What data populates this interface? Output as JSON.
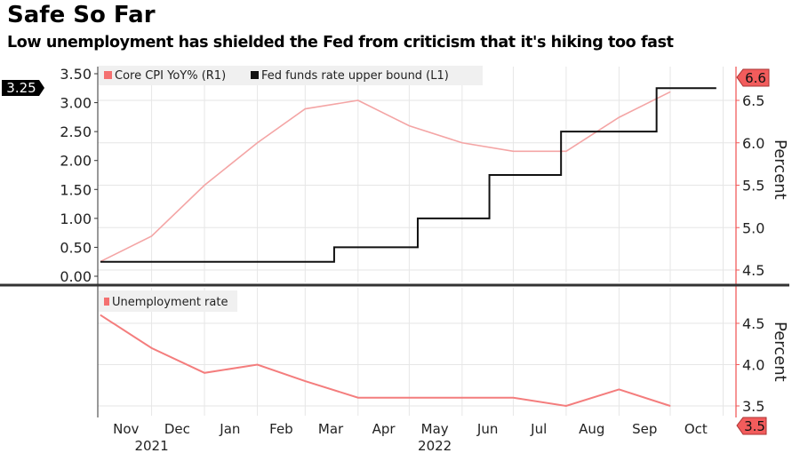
{
  "title": "Safe So Far",
  "subtitle": "Low unemployment has shielded the Fed from criticism that it's hiking too fast",
  "colors": {
    "cpi": "#f4a5a5",
    "fed": "#111111",
    "unemp": "#f47d7d",
    "axis_right": "#f25c5c",
    "grid": "#e6e6e6"
  },
  "chart_data": [
    {
      "type": "line",
      "panel": "top",
      "legend_placement": "top-left",
      "grid": true,
      "x_dates": [
        "2021-10-31",
        "2021-11-30",
        "2021-12-31",
        "2022-01-31",
        "2022-02-28",
        "2022-03-31",
        "2022-04-30",
        "2022-05-31",
        "2022-06-30",
        "2022-07-31",
        "2022-08-31",
        "2022-09-30"
      ],
      "series": [
        {
          "name": "Core CPI YoY% (R1)",
          "axis": "right",
          "values": [
            4.6,
            4.9,
            5.5,
            6.0,
            6.4,
            6.5,
            6.2,
            6.0,
            5.9,
            5.9,
            6.3,
            6.6
          ],
          "last_label": "6.6"
        },
        {
          "name": "Fed funds rate upper bound (L1)",
          "axis": "left",
          "step": true,
          "points": [
            [
              "2021-10-31",
              0.25
            ],
            [
              "2022-03-17",
              0.5
            ],
            [
              "2022-05-05",
              1.0
            ],
            [
              "2022-06-16",
              1.75
            ],
            [
              "2022-07-28",
              2.5
            ],
            [
              "2022-09-22",
              3.25
            ],
            [
              "2022-10-27",
              3.25
            ]
          ],
          "last_label": "3.25"
        }
      ],
      "left_ylim": [
        0,
        3.5
      ],
      "left_ticks": [
        "0.00",
        "0.50",
        "1.00",
        "1.50",
        "2.00",
        "2.50",
        "3.00",
        "3.50"
      ],
      "right_ylim": [
        4.35,
        6.85
      ],
      "right_ticks": [
        "4.5",
        "5.0",
        "5.5",
        "6.0",
        "6.5"
      ],
      "ylabel_right": "Percent"
    },
    {
      "type": "line",
      "panel": "bottom",
      "legend_placement": "top-left",
      "grid": true,
      "x_dates": [
        "2021-10-31",
        "2021-11-30",
        "2021-12-31",
        "2022-01-31",
        "2022-02-28",
        "2022-03-31",
        "2022-04-30",
        "2022-05-31",
        "2022-06-30",
        "2022-07-31",
        "2022-08-31",
        "2022-09-30"
      ],
      "series": [
        {
          "name": "Unemployment rate",
          "axis": "right",
          "values": [
            4.6,
            4.2,
            3.9,
            4.0,
            3.8,
            3.6,
            3.6,
            3.6,
            3.6,
            3.5,
            3.7,
            3.5
          ],
          "last_label": "3.5"
        }
      ],
      "right_ticks": [
        "3.5",
        "4.0",
        "4.5"
      ],
      "ylabel_right": "Percent"
    }
  ],
  "x_axis": {
    "months": [
      {
        "label": "Nov",
        "date": "2021-11-15"
      },
      {
        "label": "Dec",
        "date": "2021-12-15"
      },
      {
        "label": "Jan",
        "date": "2022-01-15"
      },
      {
        "label": "Feb",
        "date": "2022-02-14"
      },
      {
        "label": "Mar",
        "date": "2022-03-15"
      },
      {
        "label": "Apr",
        "date": "2022-04-15"
      },
      {
        "label": "May",
        "date": "2022-05-15"
      },
      {
        "label": "Jun",
        "date": "2022-06-15"
      },
      {
        "label": "Jul",
        "date": "2022-07-15"
      },
      {
        "label": "Aug",
        "date": "2022-08-15"
      },
      {
        "label": "Sep",
        "date": "2022-09-15"
      },
      {
        "label": "Oct",
        "date": "2022-10-15"
      }
    ],
    "years": [
      {
        "label": "2021",
        "date": "2021-11-30"
      },
      {
        "label": "2022",
        "date": "2022-05-15"
      }
    ]
  }
}
